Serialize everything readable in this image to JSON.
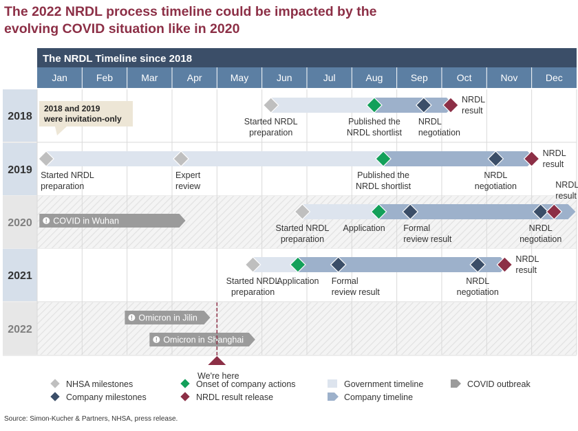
{
  "title_line1": "The 2022 NRDL process timeline could be impacted by the",
  "title_line2": "evolving COVID situation like in 2020",
  "source": "Source: Simon-Kucher & Partners, NHSA, press release.",
  "chart_data": {
    "type": "timeline",
    "header": "The NRDL Timeline since 2018",
    "months": [
      "Jan",
      "Feb",
      "Mar",
      "Apr",
      "May",
      "Jun",
      "Jul",
      "Aug",
      "Sep",
      "Oct",
      "Nov",
      "Dec"
    ],
    "note": [
      "2018 and 2019",
      "were invitation-only"
    ],
    "we_are_here": {
      "month": 4.0,
      "label": "We're here"
    },
    "rows": [
      {
        "year": "2018",
        "style": "solid",
        "bars": [
          {
            "kind": "government",
            "start": 5.2,
            "end": 7.5
          },
          {
            "kind": "company",
            "start": 7.5,
            "end": 9.2
          }
        ],
        "milestones": [
          {
            "kind": "nhsa",
            "month": 5.2,
            "label": [
              "Started NRDL",
              "preparation"
            ],
            "label_pos": "below-center"
          },
          {
            "kind": "onset",
            "month": 7.5,
            "label": [
              "Published the",
              "NRDL shortlist"
            ],
            "label_pos": "below-center"
          },
          {
            "kind": "company",
            "month": 8.6,
            "label": [
              "NRDL",
              "negotiation"
            ],
            "label_pos": "below-left"
          },
          {
            "kind": "nrdl",
            "month": 9.2,
            "label": [
              "NRDL",
              "result"
            ],
            "label_pos": "right"
          }
        ],
        "covid": []
      },
      {
        "year": "2019",
        "style": "solid",
        "bars": [
          {
            "kind": "government",
            "start": 0.2,
            "end": 7.7
          },
          {
            "kind": "company",
            "start": 7.7,
            "end": 11.0
          }
        ],
        "milestones": [
          {
            "kind": "nhsa",
            "month": 0.2,
            "label": [
              "Started NRDL",
              "preparation"
            ],
            "label_pos": "below-left"
          },
          {
            "kind": "nhsa",
            "month": 3.2,
            "label": [
              "Expert",
              "review"
            ],
            "label_pos": "below-left"
          },
          {
            "kind": "onset",
            "month": 7.7,
            "label": [
              "Published the",
              "NRDL shortlist"
            ],
            "label_pos": "below-center"
          },
          {
            "kind": "company",
            "month": 10.2,
            "label": [
              "NRDL",
              "negotiation"
            ],
            "label_pos": "below-center"
          },
          {
            "kind": "nrdl",
            "month": 11.0,
            "label": [
              "NRDL",
              "result"
            ],
            "label_pos": "right"
          }
        ],
        "covid": []
      },
      {
        "year": "2020",
        "style": "hatched",
        "bars": [
          {
            "kind": "government",
            "start": 5.9,
            "end": 7.6
          },
          {
            "kind": "company",
            "start": 7.6,
            "end": 11.9
          }
        ],
        "milestones": [
          {
            "kind": "nhsa",
            "month": 5.9,
            "label": [
              "Started NRDL",
              "preparation"
            ],
            "label_pos": "below-center"
          },
          {
            "kind": "onset",
            "month": 7.6,
            "label": [
              "Application"
            ],
            "label_pos": "below-left-near"
          },
          {
            "kind": "company",
            "month": 8.3,
            "label": [
              "Formal",
              "review result"
            ],
            "label_pos": "below-right"
          },
          {
            "kind": "company",
            "month": 11.2,
            "label": [
              "NRDL",
              "negotiation"
            ],
            "label_pos": "below-center"
          },
          {
            "kind": "nrdl",
            "month": 11.5,
            "label": [
              "NRDL",
              "result"
            ],
            "label_pos": "above"
          }
        ],
        "covid": [
          {
            "label": "COVID in Wuhan",
            "start": 0.05,
            "end": 3.3,
            "lane": 0
          }
        ]
      },
      {
        "year": "2021",
        "style": "solid",
        "bars": [
          {
            "kind": "government",
            "start": 4.8,
            "end": 5.8
          },
          {
            "kind": "company",
            "start": 5.8,
            "end": 10.4
          }
        ],
        "milestones": [
          {
            "kind": "nhsa",
            "month": 4.8,
            "label": [
              "Started NRDL",
              "preparation"
            ],
            "label_pos": "below-center"
          },
          {
            "kind": "onset",
            "month": 5.8,
            "label": [
              "Application"
            ],
            "label_pos": "below-center"
          },
          {
            "kind": "company",
            "month": 6.7,
            "label": [
              "Formal",
              "review result"
            ],
            "label_pos": "below-right"
          },
          {
            "kind": "company",
            "month": 9.8,
            "label": [
              "NRDL",
              "negotiation"
            ],
            "label_pos": "below-center"
          },
          {
            "kind": "nrdl",
            "month": 10.4,
            "label": [
              "NRDL",
              "result"
            ],
            "label_pos": "right"
          }
        ],
        "covid": []
      },
      {
        "year": "2022",
        "style": "hatched",
        "bars": [],
        "milestones": [],
        "covid": [
          {
            "label": "Omicron in Jilin",
            "start": 1.95,
            "end": 3.85,
            "lane": 0
          },
          {
            "label": "Omicron in Shanghai",
            "start": 2.5,
            "end": 4.85,
            "lane": 1
          }
        ]
      }
    ],
    "legend": [
      {
        "kind": "nhsa",
        "label": "NHSA milestones"
      },
      {
        "kind": "company",
        "label": "Company milestones"
      },
      {
        "kind": "onset",
        "label": "Onset of company actions"
      },
      {
        "kind": "nrdl",
        "label": "NRDL result release"
      },
      {
        "kind": "government",
        "label": "Government timeline"
      },
      {
        "kind": "companybar",
        "label": "Company timeline"
      },
      {
        "kind": "covid",
        "label": "COVID outbreak"
      }
    ],
    "colors": {
      "nhsa": "#bfbfbf",
      "company": "#3b4e68",
      "onset": "#13a05a",
      "nrdl": "#8c2f46",
      "government": "#dde4ee",
      "companybar": "#9db1cb",
      "covid": "#9b9b9b",
      "header": "#3b4e68",
      "month_band": "#5c7fa3",
      "year_band": "#d6dfea",
      "year_band_hatched": "#e7e7e7",
      "title": "#8c2f46",
      "note_bg": "#ede6d6"
    }
  }
}
